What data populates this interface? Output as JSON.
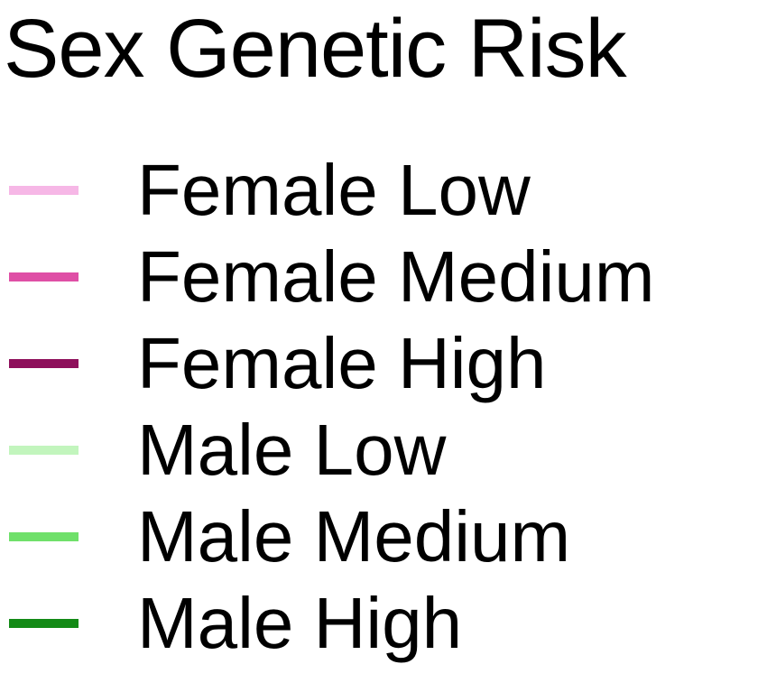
{
  "chart_data": {
    "type": "legend",
    "title": "Sex Genetic Risk",
    "legend_placement": "standalone",
    "entries": [
      {
        "label": "Female Low",
        "color": "#f6b7e6"
      },
      {
        "label": "Female Medium",
        "color": "#df4fa6"
      },
      {
        "label": "Female High",
        "color": "#8e0f5b"
      },
      {
        "label": "Male Low",
        "color": "#c2f5bd"
      },
      {
        "label": "Male Medium",
        "color": "#6fe06a"
      },
      {
        "label": "Male High",
        "color": "#138a16"
      }
    ]
  }
}
